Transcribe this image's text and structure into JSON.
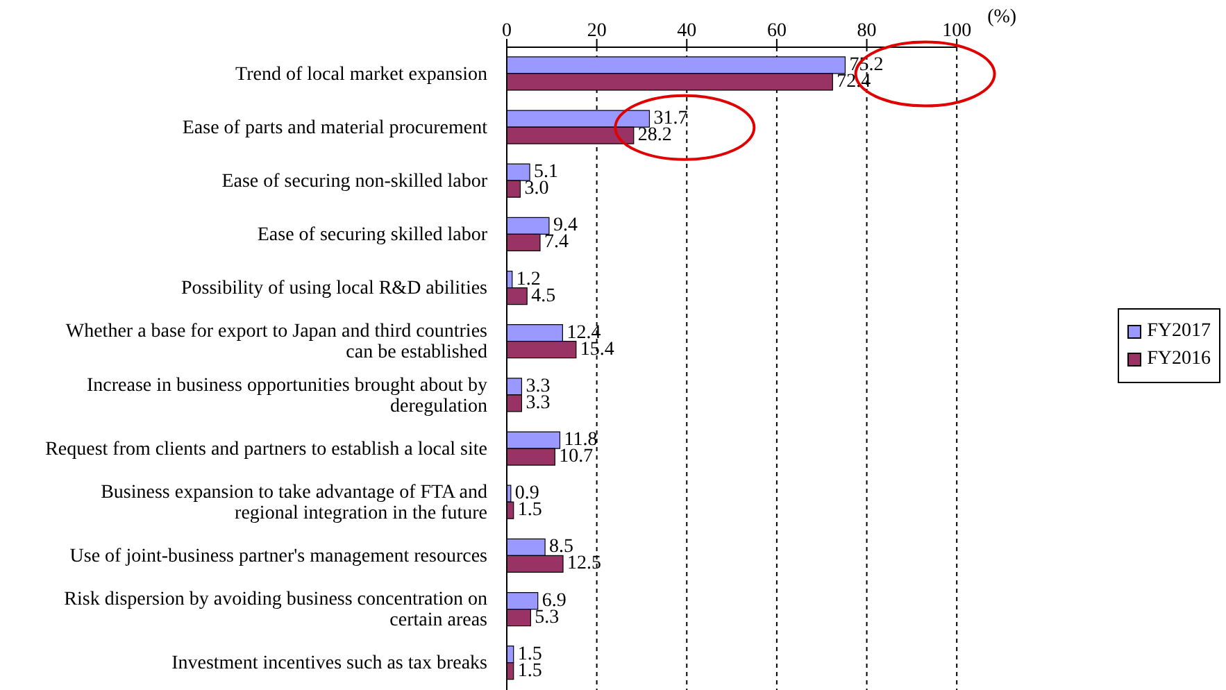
{
  "chart_data": {
    "type": "bar",
    "orientation": "horizontal",
    "xlabel": "(%)",
    "categories": [
      "Trend of local market expansion",
      "Ease of parts and material procurement",
      "Ease of securing non-skilled labor",
      "Ease of securing skilled labor",
      "Possibility of using local R&D abilities",
      "Whether a base for export to Japan and third countries can be established",
      "Increase in business opportunities brought about by deregulation",
      "Request from clients and partners to establish a local site",
      "Business expansion to take advantage of FTA and regional integration in the future",
      "Use of joint-business partner's management resources",
      "Risk dispersion by avoiding business concentration on certain areas",
      "Investment incentives such as tax breaks"
    ],
    "series": [
      {
        "name": "FY2017",
        "color": "#9999ff",
        "values": [
          75.2,
          31.7,
          5.1,
          9.4,
          1.2,
          12.4,
          3.3,
          11.8,
          0.9,
          8.5,
          6.9,
          1.5
        ],
        "value_labels": [
          "75.2",
          "31.7",
          "5.1",
          "9.4",
          "1.2",
          "12.4",
          "3.3",
          "11.8",
          "0.9",
          "8.5",
          "6.9",
          "1.5"
        ]
      },
      {
        "name": "FY2016",
        "color": "#993366",
        "values": [
          72.4,
          28.2,
          3.0,
          7.4,
          4.5,
          15.4,
          3.3,
          10.7,
          1.5,
          12.5,
          5.3,
          1.5
        ],
        "value_labels": [
          "72.4",
          "28.2",
          "3.0",
          "7.4",
          "4.5",
          "15.4",
          "3.3",
          "10.7",
          "1.5",
          "12.5",
          "5.3",
          "1.5"
        ]
      }
    ],
    "xlim": [
      0,
      100
    ],
    "xticks": [
      0,
      20,
      40,
      60,
      80,
      100
    ],
    "grid": "x",
    "legend": "right"
  }
}
